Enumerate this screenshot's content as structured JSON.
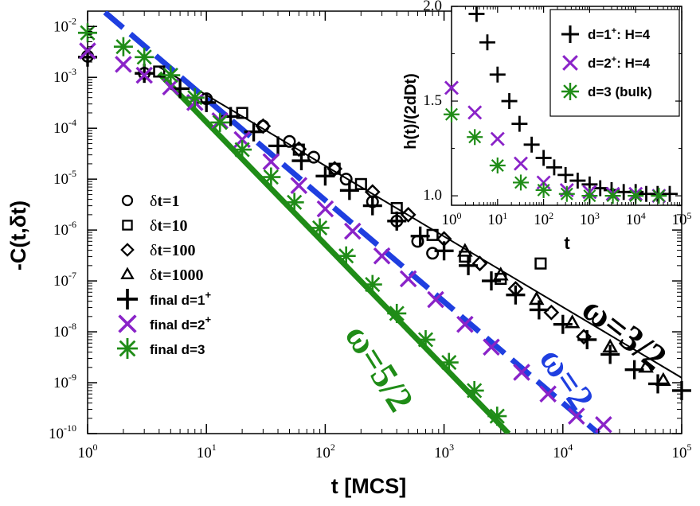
{
  "chart_data": [
    {
      "type": "scatter",
      "title": "",
      "xlabel": "t [MCS]",
      "ylabel": "-C(t,δt)",
      "x_scale": "log",
      "y_scale": "log",
      "xlim": [
        1,
        100000
      ],
      "ylim": [
        1e-10,
        0.02
      ],
      "x_ticks": [
        {
          "base": "10",
          "exp": "0"
        },
        {
          "base": "10",
          "exp": "1"
        },
        {
          "base": "10",
          "exp": "2"
        },
        {
          "base": "10",
          "exp": "3"
        },
        {
          "base": "10",
          "exp": "4"
        },
        {
          "base": "10",
          "exp": "5"
        }
      ],
      "y_ticks": [
        {
          "base": "10",
          "exp": "-10"
        },
        {
          "base": "10",
          "exp": "-9"
        },
        {
          "base": "10",
          "exp": "-8"
        },
        {
          "base": "10",
          "exp": "-7"
        },
        {
          "base": "10",
          "exp": "-6"
        },
        {
          "base": "10",
          "exp": "-5"
        },
        {
          "base": "10",
          "exp": "-4"
        },
        {
          "base": "10",
          "exp": "-3"
        },
        {
          "base": "10",
          "exp": "-2"
        }
      ],
      "series": [
        {
          "name": "δt=1",
          "marker": "circle",
          "color": "#000000",
          "x": [
            1,
            3,
            10,
            30,
            50,
            80,
            150,
            250,
            400,
            600,
            800
          ],
          "y": [
            0.0026,
            0.0012,
            0.00038,
            0.00011,
            5.5e-05,
            2.7e-05,
            1e-05,
            3.6e-06,
            1.5e-06,
            6e-07,
            3.5e-07
          ]
        },
        {
          "name": "δt=10",
          "marker": "square",
          "color": "#000000",
          "x": [
            4,
            20,
            60,
            120,
            200,
            400,
            800,
            1500,
            3000,
            6500
          ],
          "y": [
            0.0013,
            0.0002,
            3.8e-05,
            1.6e-05,
            8e-06,
            2.7e-06,
            8e-07,
            3e-07,
            1.1e-07,
            2.2e-07
          ]
        },
        {
          "name": "δt=100",
          "marker": "diamond",
          "color": "#000000",
          "x": [
            30,
            60,
            120,
            250,
            500,
            1000,
            2000,
            4000,
            8000,
            15000
          ],
          "y": [
            0.00011,
            3.9e-05,
            1.6e-05,
            5.6e-06,
            2e-06,
            6.7e-07,
            2.2e-07,
            7e-08,
            2.4e-08,
            8e-09
          ]
        },
        {
          "name": "δt=1000",
          "marker": "triangle",
          "color": "#000000",
          "x": [
            1500,
            3000,
            6000,
            12000,
            25000,
            50000,
            70000
          ],
          "y": [
            3.8e-07,
            1.3e-07,
            4.3e-08,
            1.5e-08,
            5e-09,
            2e-09,
            1.1e-09
          ]
        },
        {
          "name": "final d=1⁺",
          "marker": "plus",
          "color": "#000000",
          "x": [
            1,
            3,
            6,
            10,
            16,
            25,
            40,
            63,
            100,
            160,
            250,
            400,
            630,
            1000,
            1600,
            2500,
            4000,
            6300,
            10000,
            16000,
            25000,
            40000,
            63000,
            100000
          ],
          "y": [
            0.0025,
            0.0012,
            0.0006,
            0.00032,
            0.00017,
            8.5e-05,
            4.5e-05,
            2.3e-05,
            1.15e-05,
            6e-06,
            3e-06,
            1.5e-06,
            7.6e-07,
            3.9e-07,
            2e-07,
            1e-07,
            5.3e-08,
            2.7e-08,
            1.4e-08,
            7e-09,
            3.6e-09,
            1.8e-09,
            9.5e-10,
            7e-10
          ]
        },
        {
          "name": "final d=2⁺",
          "marker": "x",
          "color": "#8a23c8",
          "x": [
            1,
            2,
            3,
            5,
            8,
            13,
            20,
            35,
            60,
            100,
            170,
            300,
            500,
            850,
            1500,
            2500,
            4500,
            7500,
            13000,
            22000
          ],
          "y": [
            0.0033,
            0.0018,
            0.0011,
            0.00065,
            0.00032,
            0.00014,
            6e-05,
            2.2e-05,
            7.5e-06,
            2.6e-06,
            9.5e-07,
            3.1e-07,
            1.1e-07,
            4.3e-08,
            1.4e-08,
            5e-09,
            1.6e-09,
            6e-10,
            2.2e-10,
            1.5e-10
          ]
        },
        {
          "name": "final d=3",
          "marker": "asterisk",
          "color": "#1f8c17",
          "x": [
            1,
            2,
            3,
            5,
            8,
            13,
            20,
            35,
            55,
            90,
            150,
            250,
            400,
            700,
            1100,
            1800,
            2800
          ],
          "y": [
            0.0075,
            0.004,
            0.0025,
            0.0011,
            0.0004,
            0.00013,
            3.8e-05,
            1.1e-05,
            3.5e-06,
            1.1e-06,
            3.1e-07,
            8.5e-08,
            2.3e-08,
            7e-09,
            2.5e-09,
            7e-10,
            2.2e-10
          ]
        }
      ],
      "fit_lines": [
        {
          "label": "ω=3/2",
          "exponent": 1.5,
          "color": "#000000",
          "style": "solid",
          "x": [
            4,
            100000
          ],
          "y": [
            0.0016,
            1.25e-09
          ]
        },
        {
          "label": "ω=2",
          "exponent": 2,
          "color": "#1f3fe0",
          "style": "dashed",
          "x": [
            1.4,
            20000
          ],
          "y": [
            0.019,
            1e-10
          ]
        },
        {
          "label": "ω=5/2",
          "exponent": 2.5,
          "color": "#1f8c17",
          "style": "solid",
          "x": [
            4,
            3500
          ],
          "y": [
            0.0012,
            1e-10
          ]
        }
      ],
      "legend": {
        "position": "left-middle",
        "entries": [
          {
            "marker": "circle",
            "prefix": "δ",
            "label": "t=1",
            "color": "#000000"
          },
          {
            "marker": "square",
            "prefix": "δ",
            "label": "t=10",
            "color": "#000000"
          },
          {
            "marker": "diamond",
            "prefix": "δ",
            "label": "t=100",
            "color": "#000000"
          },
          {
            "marker": "triangle",
            "prefix": "δ",
            "label": "t=1000",
            "color": "#000000"
          },
          {
            "marker": "plus",
            "label": "final d=1",
            "sup": "+",
            "color": "#000000"
          },
          {
            "marker": "x",
            "label": "final d=2",
            "sup": "+",
            "color": "#8a23c8"
          },
          {
            "marker": "asterisk",
            "label": "final d=3",
            "sup": "",
            "color": "#1f8c17"
          }
        ]
      }
    },
    {
      "type": "scatter",
      "title": "",
      "xlabel": "t",
      "ylabel": "h(t)/(2dDt)",
      "x_scale": "log",
      "y_scale": "linear",
      "xlim": [
        1,
        100000
      ],
      "ylim": [
        0.95,
        2.0
      ],
      "x_ticks": [
        {
          "base": "10",
          "exp": "0"
        },
        {
          "base": "10",
          "exp": "1"
        },
        {
          "base": "10",
          "exp": "2"
        },
        {
          "base": "10",
          "exp": "3"
        },
        {
          "base": "10",
          "exp": "4"
        },
        {
          "base": "10",
          "exp": "5"
        }
      ],
      "y_ticks": [
        "1.0",
        "1.5",
        "2.0"
      ],
      "series": [
        {
          "name": "d=1⁺: H=4",
          "marker": "plus",
          "color": "#000000",
          "x": [
            3.5,
            6,
            10,
            18,
            30,
            55,
            100,
            170,
            300,
            550,
            1000,
            1700,
            3000,
            5500,
            10000,
            17000,
            30000,
            55000
          ],
          "y": [
            1.96,
            1.81,
            1.64,
            1.5,
            1.38,
            1.27,
            1.2,
            1.15,
            1.11,
            1.08,
            1.06,
            1.04,
            1.03,
            1.02,
            1.02,
            1.01,
            1.01,
            1.01
          ]
        },
        {
          "name": "d=2⁺: H=4",
          "marker": "x",
          "color": "#8a23c8",
          "x": [
            1,
            3.2,
            10,
            32,
            100,
            320,
            1000,
            3200,
            10000,
            32000
          ],
          "y": [
            1.57,
            1.44,
            1.3,
            1.17,
            1.07,
            1.03,
            1.02,
            1.01,
            1.01,
            1.0
          ]
        },
        {
          "name": "d=3 (bulk)",
          "marker": "asterisk",
          "color": "#1f8c17",
          "x": [
            1,
            3.2,
            10,
            32,
            100,
            320,
            1000,
            3200,
            10000,
            32000
          ],
          "y": [
            1.43,
            1.31,
            1.16,
            1.07,
            1.03,
            1.01,
            1.0,
            1.0,
            1.0,
            1.0
          ]
        }
      ],
      "legend": {
        "position": "top-right",
        "entries": [
          {
            "marker": "plus",
            "label": "d=1",
            "sup": "+",
            "suffix": ": H=4",
            "color": "#000000"
          },
          {
            "marker": "x",
            "label": "d=2",
            "sup": "+",
            "suffix": ": H=4",
            "color": "#8a23c8"
          },
          {
            "marker": "asterisk",
            "label": "d=3 (bulk)",
            "sup": "",
            "suffix": "",
            "color": "#1f8c17"
          }
        ]
      }
    }
  ]
}
